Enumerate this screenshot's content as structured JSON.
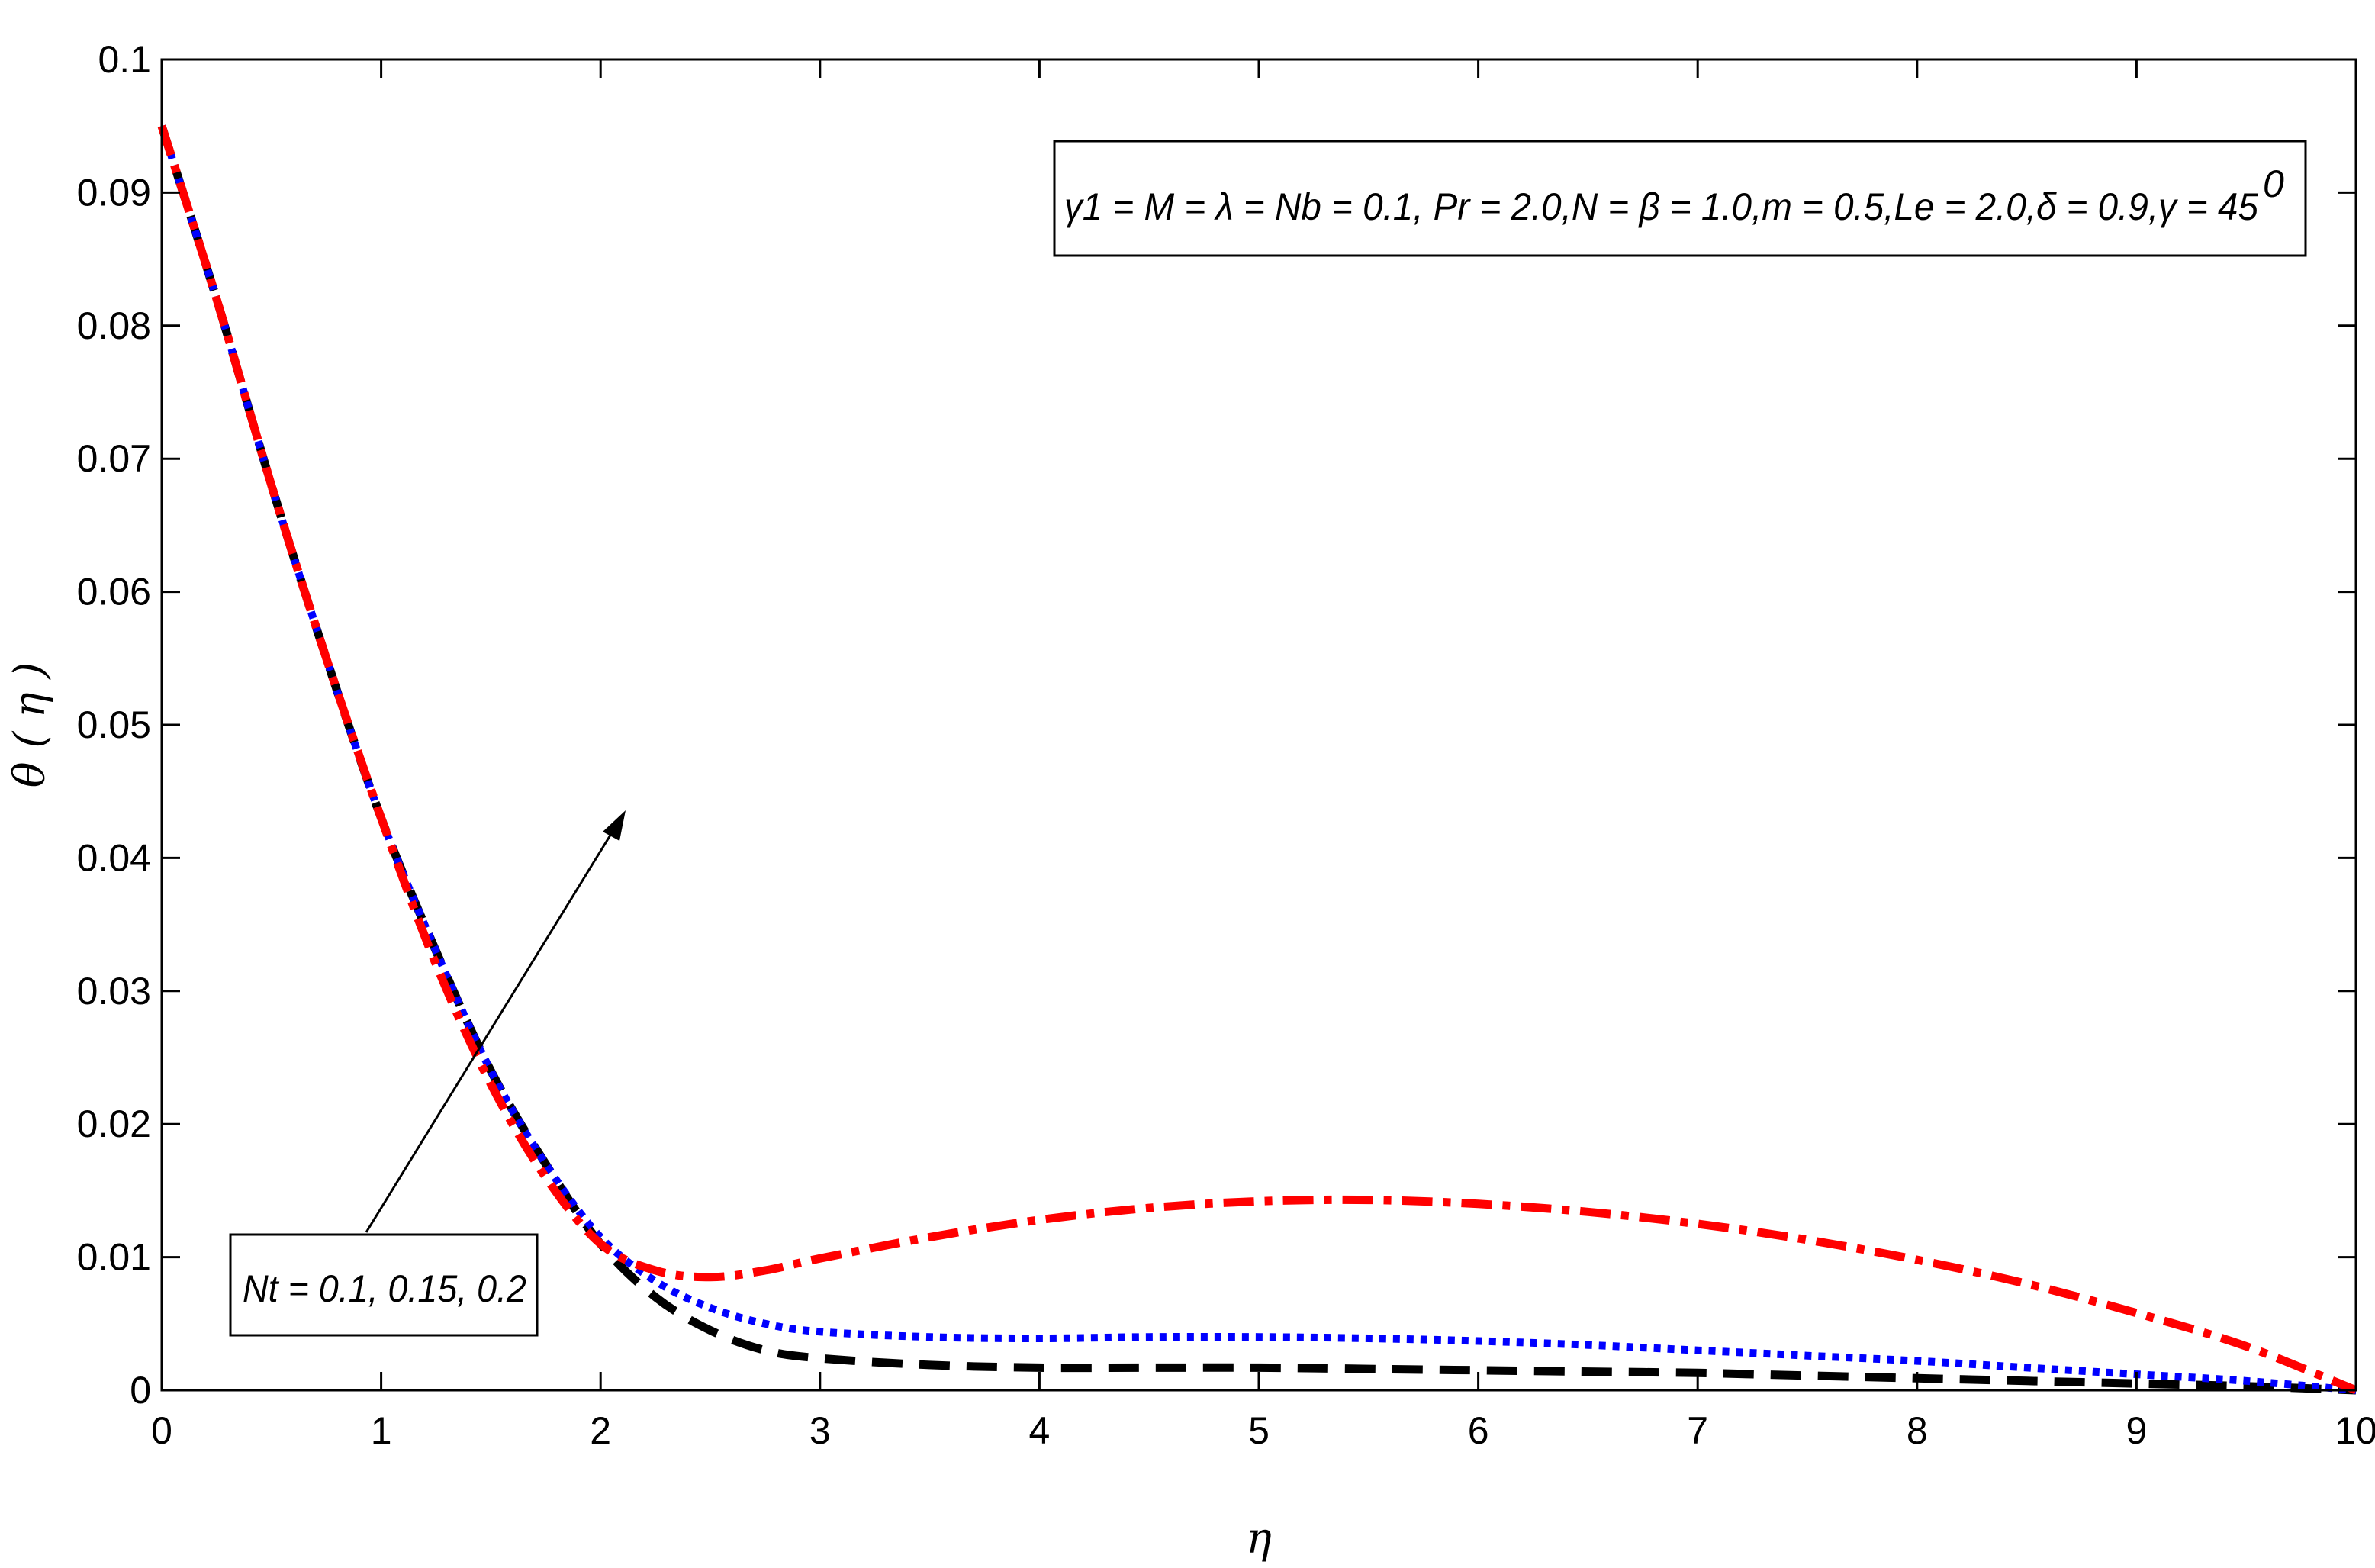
{
  "chart_data": {
    "type": "line",
    "xlabel": "η",
    "ylabel": "θ ( η )",
    "xlim": [
      0,
      10
    ],
    "ylim": [
      0,
      0.1
    ],
    "xticks": [
      "0",
      "1",
      "2",
      "3",
      "4",
      "5",
      "6",
      "7",
      "8",
      "9",
      "10"
    ],
    "yticks": [
      "0",
      "0.01",
      "0.02",
      "0.03",
      "0.04",
      "0.05",
      "0.06",
      "0.07",
      "0.08",
      "0.09",
      "0.1"
    ],
    "parameters_box": "γ1 = M = λ = Nb = 0.1, Pr = 2.0,N = β = 1.0,m = 0.5,Le = 2.0,δ = 0.9,γ = 45",
    "parameters_box_superscript": "0",
    "annotation": "Nt = 0.1, 0.15, 0.2",
    "grid": false,
    "x": [
      0,
      0.25,
      0.5,
      0.75,
      1.0,
      1.25,
      1.5,
      1.75,
      2.0,
      2.25,
      2.5,
      2.75,
      3.0,
      3.5,
      4.0,
      4.5,
      5.0,
      5.5,
      6.0,
      6.5,
      7.0,
      7.5,
      8.0,
      8.5,
      9.0,
      9.5,
      10.0
    ],
    "series": [
      {
        "color": "#000000",
        "style": "dashed",
        "values": [
          0.095,
          0.082,
          0.068,
          0.055,
          0.043,
          0.033,
          0.024,
          0.017,
          0.011,
          0.007,
          0.0045,
          0.003,
          0.0024,
          0.0019,
          0.0017,
          0.0017,
          0.0017,
          0.0016,
          0.0015,
          0.0014,
          0.0013,
          0.0011,
          0.0009,
          0.0007,
          0.0005,
          0.0003,
          0.0
        ]
      },
      {
        "color": "#0000ff",
        "style": "dotted",
        "values": [
          0.095,
          0.082,
          0.068,
          0.055,
          0.043,
          0.033,
          0.024,
          0.017,
          0.0115,
          0.0082,
          0.0062,
          0.005,
          0.0044,
          0.004,
          0.0039,
          0.004,
          0.004,
          0.0039,
          0.0037,
          0.0034,
          0.003,
          0.0026,
          0.0022,
          0.0017,
          0.0012,
          0.0007,
          0.0
        ]
      },
      {
        "color": "#ff0000",
        "style": "dash-dot",
        "values": [
          0.095,
          0.082,
          0.068,
          0.055,
          0.043,
          0.032,
          0.023,
          0.016,
          0.011,
          0.009,
          0.0085,
          0.009,
          0.0099,
          0.0115,
          0.0128,
          0.0137,
          0.0142,
          0.0143,
          0.014,
          0.0134,
          0.0125,
          0.0113,
          0.0098,
          0.008,
          0.0058,
          0.0033,
          0.0
        ]
      }
    ]
  }
}
